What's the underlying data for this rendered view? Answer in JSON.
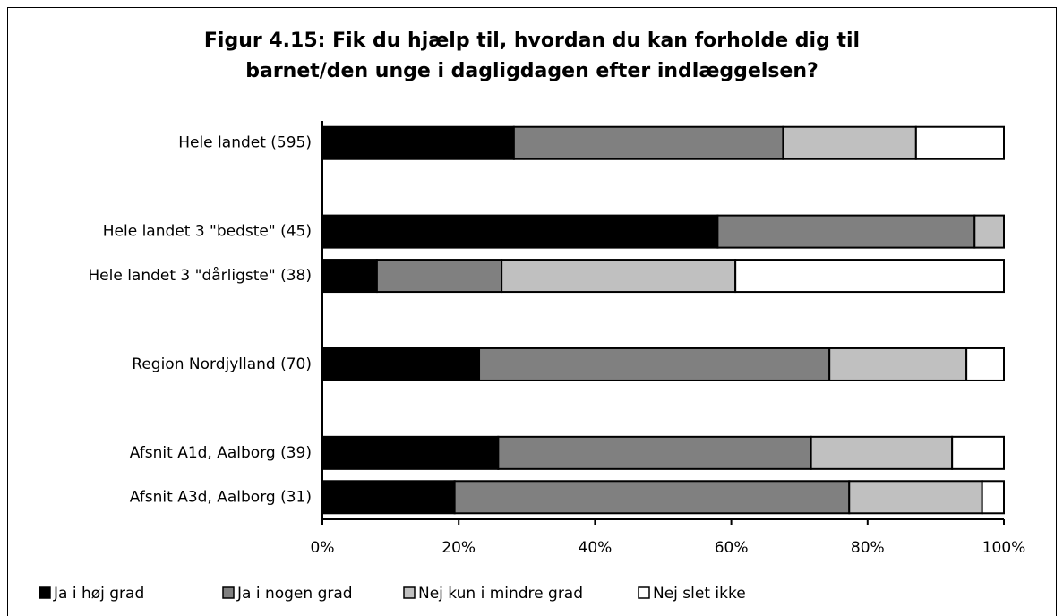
{
  "chart_data": {
    "type": "stacked-barh",
    "title": [
      "Figur 4.15: Fik du hjælp til, hvordan du kan forholde dig til",
      "barnet/den unge i dagligdagen efter indlæggelsen?"
    ],
    "categories": [
      "Hele landet  (595)",
      null,
      "Hele landet 3 \"bedste\" (45)",
      "Hele landet 3 \"dårligste\" (38)",
      null,
      "Region Nordjylland (70)",
      null,
      "Afsnit A1d, Aalborg (39)",
      "Afsnit A3d, Aalborg (31)"
    ],
    "series": [
      {
        "name": "Ja i høj grad",
        "color": "#000000",
        "values": [
          28.1,
          null,
          58.0,
          8.0,
          null,
          23.0,
          null,
          25.8,
          19.4
        ]
      },
      {
        "name": "Ja i nogen grad",
        "color": "#808080",
        "values": [
          39.5,
          null,
          37.7,
          18.3,
          null,
          51.4,
          null,
          45.9,
          57.9
        ]
      },
      {
        "name": "Nej kun i mindre grad",
        "color": "#c0c0c0",
        "values": [
          19.5,
          null,
          4.3,
          34.3,
          null,
          20.1,
          null,
          20.7,
          19.5
        ]
      },
      {
        "name": "Nej slet ikke",
        "color": "#ffffff",
        "values": [
          12.9,
          null,
          0,
          39.4,
          null,
          5.5,
          null,
          7.6,
          3.2
        ]
      }
    ],
    "xlim": [
      0,
      100
    ],
    "xticks": [
      {
        "value": 0,
        "label": "0%"
      },
      {
        "value": 20,
        "label": "20%"
      },
      {
        "value": 40,
        "label": "40%"
      },
      {
        "value": 60,
        "label": "60%"
      },
      {
        "value": 80,
        "label": "80%"
      },
      {
        "value": 100,
        "label": "100%"
      }
    ],
    "legend": "bottom"
  }
}
